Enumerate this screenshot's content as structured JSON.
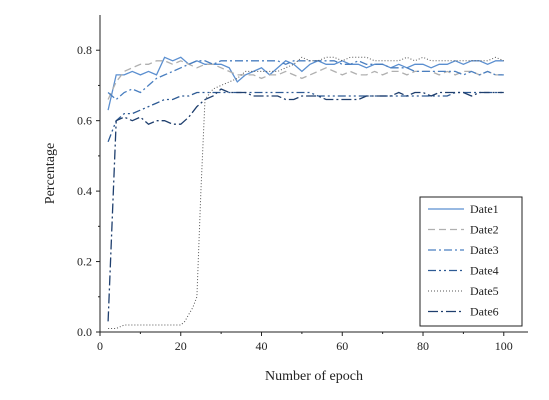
{
  "chart_data": {
    "type": "line",
    "title": "",
    "xlabel": "Number of epoch",
    "ylabel": "Percentage",
    "xlim": [
      0,
      106
    ],
    "ylim": [
      0,
      0.9
    ],
    "x_ticks": [
      0,
      20,
      40,
      60,
      80,
      100
    ],
    "y_ticks": [
      0.0,
      0.2,
      0.4,
      0.6,
      0.8
    ],
    "x_tick_labels": [
      "0",
      "20",
      "40",
      "60",
      "80",
      "100"
    ],
    "y_tick_labels": [
      "0.0",
      "0.2",
      "0.4",
      "0.6",
      "0.8"
    ],
    "grid": false,
    "legend_position": "bottom-right",
    "series": [
      {
        "name": "Date1",
        "color": "#5b8fd0",
        "dash": "solid",
        "x": [
          2,
          4,
          6,
          8,
          10,
          12,
          14,
          16,
          18,
          20,
          22,
          24,
          26,
          28,
          30,
          32,
          34,
          36,
          38,
          40,
          42,
          44,
          46,
          48,
          50,
          52,
          54,
          56,
          58,
          60,
          62,
          64,
          66,
          68,
          70,
          72,
          74,
          76,
          78,
          80,
          82,
          84,
          86,
          88,
          90,
          92,
          94,
          96,
          98,
          100
        ],
        "y": [
          0.63,
          0.73,
          0.73,
          0.74,
          0.73,
          0.74,
          0.73,
          0.78,
          0.77,
          0.78,
          0.76,
          0.77,
          0.76,
          0.76,
          0.76,
          0.75,
          0.71,
          0.73,
          0.74,
          0.75,
          0.73,
          0.75,
          0.77,
          0.76,
          0.74,
          0.76,
          0.77,
          0.76,
          0.76,
          0.77,
          0.76,
          0.76,
          0.75,
          0.76,
          0.76,
          0.75,
          0.76,
          0.75,
          0.76,
          0.76,
          0.75,
          0.76,
          0.76,
          0.77,
          0.76,
          0.77,
          0.77,
          0.76,
          0.77,
          0.77
        ]
      },
      {
        "name": "Date2",
        "color": "#b0b0b0",
        "dash": "dashed",
        "x": [
          2,
          4,
          6,
          8,
          10,
          12,
          14,
          16,
          18,
          20,
          22,
          24,
          26,
          28,
          30,
          32,
          34,
          36,
          38,
          40,
          42,
          44,
          46,
          48,
          50,
          52,
          54,
          56,
          58,
          60,
          62,
          64,
          66,
          68,
          70,
          72,
          74,
          76,
          78,
          80,
          82,
          84,
          86,
          88,
          90,
          92,
          94,
          96,
          98,
          100
        ],
        "y": [
          0.66,
          0.71,
          0.74,
          0.75,
          0.76,
          0.76,
          0.77,
          0.77,
          0.76,
          0.77,
          0.76,
          0.75,
          0.76,
          0.76,
          0.75,
          0.74,
          0.73,
          0.73,
          0.73,
          0.72,
          0.73,
          0.73,
          0.74,
          0.73,
          0.72,
          0.73,
          0.74,
          0.75,
          0.74,
          0.73,
          0.74,
          0.73,
          0.73,
          0.74,
          0.73,
          0.74,
          0.74,
          0.73,
          0.74,
          0.74,
          0.74,
          0.73,
          0.74,
          0.73,
          0.74,
          0.74,
          0.73,
          0.74,
          0.73,
          0.73
        ]
      },
      {
        "name": "Date3",
        "color": "#4a7fc0",
        "dash": "dashdot",
        "x": [
          2,
          4,
          6,
          8,
          10,
          12,
          14,
          16,
          18,
          20,
          22,
          24,
          26,
          28,
          30,
          32,
          34,
          36,
          38,
          40,
          42,
          44,
          46,
          48,
          50,
          52,
          54,
          56,
          58,
          60,
          62,
          64,
          66,
          68,
          70,
          72,
          74,
          76,
          78,
          80,
          82,
          84,
          86,
          88,
          90,
          92,
          94,
          96,
          98,
          100
        ],
        "y": [
          0.68,
          0.66,
          0.68,
          0.69,
          0.68,
          0.7,
          0.72,
          0.73,
          0.74,
          0.75,
          0.76,
          0.77,
          0.77,
          0.76,
          0.77,
          0.77,
          0.77,
          0.77,
          0.77,
          0.77,
          0.77,
          0.77,
          0.76,
          0.77,
          0.77,
          0.77,
          0.77,
          0.77,
          0.77,
          0.76,
          0.76,
          0.77,
          0.76,
          0.76,
          0.76,
          0.75,
          0.75,
          0.75,
          0.74,
          0.74,
          0.74,
          0.74,
          0.74,
          0.74,
          0.73,
          0.74,
          0.73,
          0.74,
          0.73,
          0.73
        ]
      },
      {
        "name": "Date4",
        "color": "#2d5a94",
        "dash": "dashdotdot",
        "x": [
          2,
          4,
          6,
          8,
          10,
          12,
          14,
          16,
          18,
          20,
          22,
          24,
          26,
          28,
          30,
          32,
          34,
          36,
          38,
          40,
          42,
          44,
          46,
          48,
          50,
          52,
          54,
          56,
          58,
          60,
          62,
          64,
          66,
          68,
          70,
          72,
          74,
          76,
          78,
          80,
          82,
          84,
          86,
          88,
          90,
          92,
          94,
          96,
          98,
          100
        ],
        "y": [
          0.54,
          0.6,
          0.62,
          0.62,
          0.63,
          0.64,
          0.65,
          0.66,
          0.66,
          0.67,
          0.67,
          0.68,
          0.68,
          0.68,
          0.68,
          0.68,
          0.68,
          0.68,
          0.68,
          0.68,
          0.68,
          0.68,
          0.68,
          0.68,
          0.68,
          0.68,
          0.67,
          0.67,
          0.67,
          0.67,
          0.67,
          0.67,
          0.67,
          0.67,
          0.67,
          0.67,
          0.67,
          0.67,
          0.67,
          0.67,
          0.67,
          0.67,
          0.67,
          0.68,
          0.68,
          0.68,
          0.68,
          0.68,
          0.68,
          0.68
        ]
      },
      {
        "name": "Date5",
        "color": "#555555",
        "dash": "dotted",
        "x": [
          2,
          4,
          6,
          8,
          10,
          12,
          14,
          16,
          18,
          20,
          21,
          22,
          23,
          24,
          25,
          26,
          28,
          30,
          32,
          34,
          36,
          38,
          40,
          42,
          44,
          46,
          48,
          50,
          52,
          54,
          56,
          58,
          60,
          62,
          64,
          66,
          68,
          70,
          72,
          74,
          76,
          78,
          80,
          82,
          84,
          86,
          88,
          90,
          92,
          94,
          96,
          98,
          100
        ],
        "y": [
          0.01,
          0.01,
          0.02,
          0.02,
          0.02,
          0.02,
          0.02,
          0.02,
          0.02,
          0.02,
          0.03,
          0.05,
          0.07,
          0.1,
          0.4,
          0.66,
          0.69,
          0.7,
          0.71,
          0.72,
          0.74,
          0.74,
          0.74,
          0.74,
          0.74,
          0.75,
          0.76,
          0.78,
          0.77,
          0.77,
          0.78,
          0.78,
          0.77,
          0.78,
          0.78,
          0.78,
          0.77,
          0.77,
          0.77,
          0.77,
          0.78,
          0.77,
          0.78,
          0.77,
          0.77,
          0.77,
          0.77,
          0.77,
          0.77,
          0.77,
          0.77,
          0.78,
          0.77
        ]
      },
      {
        "name": "Date6",
        "color": "#1f3f6e",
        "dash": "dashdotlong",
        "x": [
          2,
          4,
          6,
          8,
          10,
          12,
          14,
          16,
          18,
          20,
          22,
          24,
          26,
          28,
          30,
          32,
          34,
          36,
          38,
          40,
          42,
          44,
          46,
          48,
          50,
          52,
          54,
          56,
          58,
          60,
          62,
          64,
          66,
          68,
          70,
          72,
          74,
          76,
          78,
          80,
          82,
          84,
          86,
          88,
          90,
          92,
          94,
          96,
          98,
          100
        ],
        "y": [
          0.03,
          0.6,
          0.61,
          0.6,
          0.61,
          0.59,
          0.6,
          0.6,
          0.59,
          0.59,
          0.61,
          0.64,
          0.66,
          0.67,
          0.69,
          0.68,
          0.68,
          0.68,
          0.67,
          0.67,
          0.67,
          0.67,
          0.66,
          0.66,
          0.67,
          0.67,
          0.67,
          0.66,
          0.66,
          0.66,
          0.66,
          0.66,
          0.67,
          0.67,
          0.67,
          0.67,
          0.68,
          0.67,
          0.68,
          0.68,
          0.67,
          0.68,
          0.68,
          0.68,
          0.68,
          0.67,
          0.68,
          0.68,
          0.68,
          0.68
        ]
      }
    ]
  }
}
